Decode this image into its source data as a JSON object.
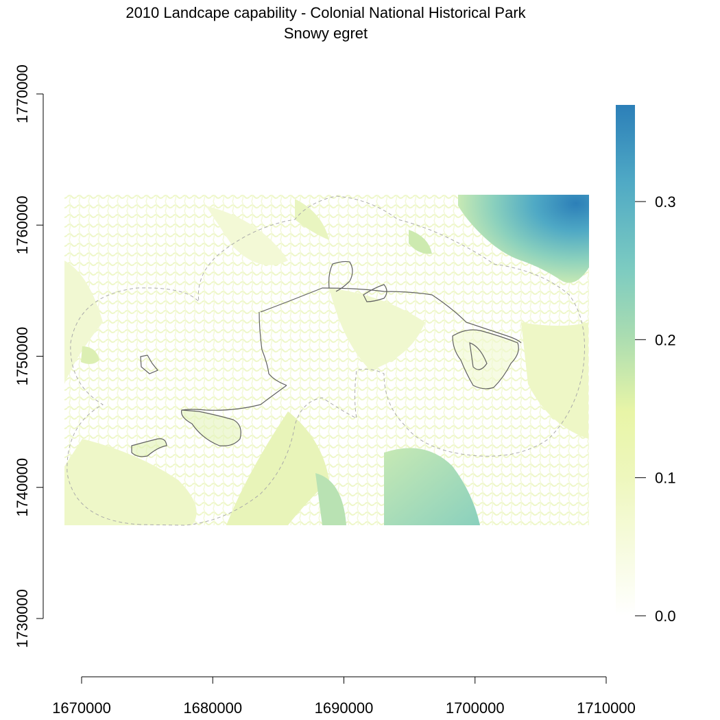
{
  "title": "2010 Landcape capability - Colonial National Historical Park",
  "subtitle": "Snowy egret",
  "x_axis": {
    "ticks": [
      "1670000",
      "1680000",
      "1690000",
      "1700000",
      "1710000"
    ],
    "values": [
      1670000,
      1680000,
      1690000,
      1700000,
      1710000
    ],
    "range": [
      1670000,
      1710000
    ]
  },
  "y_axis": {
    "ticks": [
      "1730000",
      "1740000",
      "1750000",
      "1760000",
      "1770000"
    ],
    "values": [
      1730000,
      1740000,
      1750000,
      1760000,
      1770000
    ],
    "range": [
      1730000,
      1770000
    ]
  },
  "legend": {
    "ticks": [
      "0.0",
      "0.1",
      "0.2",
      "0.3"
    ],
    "values": [
      0.0,
      0.1,
      0.2,
      0.3
    ],
    "range": [
      0.0,
      0.37
    ],
    "colors": [
      "#ffffff",
      "#f1f8c8",
      "#e6f5a6",
      "#a9dcb1",
      "#7ccbc1",
      "#4fa9c5",
      "#2c7fb8"
    ]
  },
  "map": {
    "raster_extent_x": [
      1669000,
      1709000
    ],
    "raster_extent_y": [
      1737000,
      1762200
    ],
    "boundary_color": "#606060",
    "buffer_color": "#aaaaaa"
  }
}
